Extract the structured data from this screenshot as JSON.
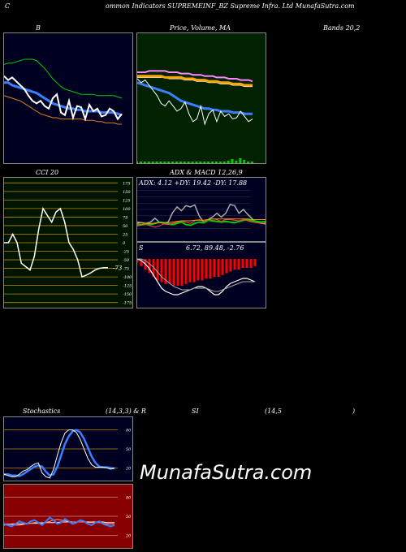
{
  "header": {
    "title": "Common Indicators SUPREMEINF_BZ Supreme Infra. Ltd MunafaSutra.com",
    "left": "C",
    "right": "ommon  Indicators SUPREMEINF_BZ Supreme  Infra. Ltd MunafaSutra.com"
  },
  "labels": {
    "bollinger": "B",
    "price_ma": "Price,  Volume,  MA",
    "bands": "Bands 20,2",
    "cci": "CCI 20",
    "adx_macd": "ADX  & MACD 12,26,9",
    "adx_values": "ADX: 4.12  +DY: 19.42  -DY: 17.88",
    "macd_s": "S",
    "macd_values": "6.72,  89.48,  -2.76",
    "stoch": "Stochastics",
    "stoch_params": "(14,3,3) & R",
    "rsi": "SI",
    "rsi_params": "(14,5",
    "rsi_close": ")",
    "cci_value": "-73"
  },
  "watermark": "MunafaSutra.com",
  "colors": {
    "bollinger_bg": "#000020",
    "price_bg": "#002200",
    "cci_bg": "#001500",
    "adx_bg": "#000020",
    "stoch_bg": "#000020",
    "rsi_bg": "#880000",
    "blue": "#3a7fff",
    "green": "#00cc00",
    "orange": "#e08020",
    "gridline": "#b8860b"
  },
  "chart_data": [
    {
      "type": "line",
      "name": "bollinger",
      "x": [
        0,
        1,
        2,
        3,
        4,
        5,
        6,
        7,
        8,
        9,
        10,
        11,
        12,
        13,
        14,
        15,
        16,
        17,
        18,
        19,
        20,
        21,
        22,
        23,
        24,
        25,
        26,
        27,
        28,
        29
      ],
      "series": [
        {
          "values": [
            62,
            62,
            60,
            59,
            58,
            57,
            56,
            55,
            54,
            52,
            50,
            48,
            46,
            45,
            44,
            43,
            42,
            42,
            41,
            41,
            40,
            40,
            40,
            40,
            39,
            39,
            39,
            39,
            38,
            37
          ]
        },
        {
          "values": [
            76,
            77,
            77,
            78,
            79,
            80,
            80,
            80,
            79,
            76,
            73,
            69,
            65,
            62,
            59,
            57,
            56,
            55,
            54,
            53,
            53,
            53,
            53,
            52,
            52,
            52,
            52,
            52,
            51,
            50
          ]
        },
        {
          "values": [
            52,
            51,
            50,
            49,
            48,
            46,
            44,
            42,
            40,
            38,
            37,
            36,
            35,
            35,
            34,
            34,
            34,
            34,
            34,
            34,
            33,
            33,
            33,
            32,
            32,
            31,
            31,
            31,
            30,
            30
          ]
        },
        {
          "values": [
            67,
            64,
            66,
            63,
            60,
            57,
            52,
            48,
            46,
            48,
            44,
            42,
            50,
            53,
            39,
            37,
            48,
            35,
            44,
            43,
            34,
            45,
            40,
            42,
            36,
            37,
            42,
            40,
            34,
            38
          ]
        }
      ]
    },
    {
      "type": "line",
      "name": "price_volume_ma",
      "x": [
        0,
        1,
        2,
        3,
        4,
        5,
        6,
        7,
        8,
        9,
        10,
        11,
        12,
        13,
        14,
        15,
        16,
        17,
        18,
        19,
        20,
        21,
        22,
        23,
        24,
        25,
        26,
        27,
        28,
        29
      ],
      "series": [
        {
          "values": [
            62,
            61,
            60,
            59,
            58,
            57,
            56,
            55,
            54,
            52,
            50,
            48,
            47,
            46,
            45,
            44,
            43,
            42,
            42,
            41,
            41,
            40,
            40,
            40,
            39,
            39,
            39,
            38,
            38,
            38
          ]
        },
        {
          "values": [
            70,
            70,
            70,
            71,
            71,
            71,
            71,
            71,
            70,
            70,
            70,
            69,
            69,
            69,
            68,
            68,
            68,
            67,
            67,
            67,
            66,
            66,
            66,
            65,
            65,
            65,
            64,
            64,
            64,
            63
          ]
        },
        {
          "values": [
            66,
            66,
            66,
            66,
            66,
            66,
            66,
            66,
            65,
            65,
            65,
            65,
            64,
            64,
            64,
            63,
            63,
            63,
            62,
            62,
            62,
            61,
            61,
            61,
            60,
            60,
            60,
            59,
            59,
            59
          ]
        },
        {
          "values": [
            67,
            67,
            67,
            67,
            67,
            67,
            67,
            66,
            66,
            66,
            66,
            66,
            65,
            65,
            65,
            64,
            64,
            64,
            63,
            63,
            63,
            62,
            62,
            62,
            61,
            61,
            61,
            60,
            60,
            60
          ]
        },
        {
          "values": [
            65,
            62,
            64,
            60,
            56,
            52,
            46,
            44,
            48,
            44,
            40,
            42,
            47,
            38,
            32,
            34,
            44,
            30,
            38,
            41,
            32,
            40,
            36,
            38,
            34,
            35,
            40,
            36,
            32,
            34
          ]
        }
      ],
      "volume": [
        2,
        2,
        2,
        2,
        2,
        2,
        2,
        2,
        2,
        2,
        2,
        2,
        2,
        2,
        2,
        2,
        2,
        2,
        2,
        2,
        2,
        2,
        2,
        3,
        5,
        3,
        6,
        4,
        2,
        2
      ]
    },
    {
      "type": "line",
      "name": "cci",
      "ticks": [
        175,
        150,
        125,
        100,
        75,
        50,
        25,
        0,
        -25,
        -50,
        -75,
        -100,
        -125,
        -150,
        -175
      ],
      "x": [
        0,
        1,
        2,
        3,
        4,
        5,
        6,
        7,
        8,
        9,
        10,
        11,
        12,
        13,
        14,
        15,
        16,
        17,
        18,
        19,
        20,
        21,
        22,
        23,
        24
      ],
      "values": [
        0,
        0,
        25,
        0,
        -60,
        -70,
        -80,
        -40,
        40,
        100,
        80,
        60,
        90,
        100,
        60,
        0,
        -20,
        -50,
        -100,
        -95,
        -88,
        -80,
        -75,
        -73,
        -73
      ]
    },
    {
      "type": "line",
      "name": "adx",
      "x": [
        0,
        1,
        2,
        3,
        4,
        5,
        6,
        7,
        8,
        9,
        10,
        11,
        12,
        13,
        14,
        15,
        16,
        17,
        18,
        19,
        20,
        21,
        22,
        23,
        24,
        25,
        26,
        27,
        28,
        29
      ],
      "series": [
        {
          "values": [
            30,
            29,
            28,
            30,
            36,
            30,
            28,
            30,
            45,
            54,
            48,
            56,
            54,
            57,
            40,
            30,
            34,
            38,
            44,
            38,
            44,
            58,
            56,
            44,
            50,
            42,
            35,
            30,
            28,
            27
          ]
        },
        {
          "values": [
            26,
            26,
            27,
            26,
            28,
            30,
            29,
            27,
            26,
            28,
            30,
            26,
            25,
            28,
            30,
            29,
            33,
            32,
            31,
            30,
            31,
            30,
            29,
            31,
            33,
            34,
            32,
            31,
            30,
            31
          ]
        },
        {
          "values": [
            24,
            25,
            26,
            24,
            22,
            24,
            27,
            26,
            28,
            30,
            32,
            30,
            28,
            32,
            34,
            31,
            34,
            35,
            34,
            31,
            34,
            34,
            33,
            32,
            34,
            32,
            30,
            29,
            28,
            29
          ]
        },
        {
          "values": [
            28,
            29,
            28,
            28,
            28,
            29,
            29,
            29,
            30,
            31,
            32,
            32,
            32,
            33,
            33,
            33,
            34,
            35,
            35,
            35,
            35,
            35,
            35,
            35,
            35,
            35,
            34,
            34,
            34,
            34
          ]
        }
      ]
    },
    {
      "type": "bar",
      "name": "macd",
      "x": [
        0,
        1,
        2,
        3,
        4,
        5,
        6,
        7,
        8,
        9,
        10,
        11,
        12,
        13,
        14,
        15,
        16,
        17,
        18,
        19,
        20,
        21,
        22,
        23,
        24,
        25,
        26,
        27,
        28,
        29
      ],
      "histogram": [
        -2,
        -4,
        -6,
        -8,
        -10,
        -12,
        -13,
        -14,
        -14,
        -15,
        -15,
        -15,
        -14,
        -13,
        -13,
        -12,
        -12,
        -11,
        -11,
        -10,
        -10,
        -9,
        -8,
        -7,
        -6,
        -6,
        -5,
        -5,
        -5,
        -4
      ],
      "series": [
        {
          "values": [
            0,
            -1,
            -3,
            -6,
            -10,
            -14,
            -18,
            -20,
            -21,
            -22,
            -22,
            -21,
            -20,
            -19,
            -18,
            -17,
            -17,
            -18,
            -20,
            -22,
            -22,
            -20,
            -17,
            -15,
            -14,
            -13,
            -12,
            -12,
            -13,
            -14
          ]
        },
        {
          "values": [
            0,
            0,
            -1,
            -3,
            -5,
            -8,
            -11,
            -13,
            -15,
            -17,
            -18,
            -19,
            -19,
            -19,
            -18,
            -18,
            -18,
            -18,
            -19,
            -20,
            -20,
            -19,
            -18,
            -17,
            -16,
            -15,
            -14,
            -14,
            -14,
            -14
          ]
        }
      ]
    },
    {
      "type": "line",
      "name": "stochastics",
      "ticks": [
        80,
        50,
        20
      ],
      "x": [
        0,
        1,
        2,
        3,
        4,
        5,
        6,
        7,
        8,
        9,
        10,
        11,
        12,
        13,
        14,
        15,
        16,
        17,
        18,
        19,
        20,
        21,
        22,
        23,
        24,
        25,
        26,
        27,
        28,
        29
      ],
      "series": [
        {
          "values": [
            10,
            8,
            6,
            6,
            10,
            15,
            17,
            22,
            26,
            28,
            12,
            6,
            4,
            18,
            40,
            60,
            75,
            80,
            80,
            76,
            65,
            50,
            35,
            25,
            21,
            21,
            21,
            20,
            18,
            20
          ]
        },
        {
          "values": [
            10,
            10,
            8,
            8,
            7,
            10,
            14,
            18,
            22,
            24,
            22,
            14,
            8,
            10,
            22,
            40,
            58,
            70,
            78,
            80,
            76,
            66,
            52,
            38,
            28,
            22,
            21,
            21,
            20,
            19
          ]
        }
      ]
    },
    {
      "type": "line",
      "name": "rsi",
      "ticks": [
        80,
        50,
        20
      ],
      "x": [
        0,
        1,
        2,
        3,
        4,
        5,
        6,
        7,
        8,
        9,
        10,
        11,
        12,
        13,
        14,
        15,
        16,
        17,
        18,
        19,
        20,
        21,
        22,
        23,
        24,
        25,
        26,
        27,
        28,
        29
      ],
      "series": [
        {
          "values": [
            36,
            37,
            38,
            38,
            38,
            38,
            39,
            39,
            39,
            39,
            39,
            40,
            40,
            40,
            40,
            41,
            41,
            41,
            41,
            41,
            41,
            41,
            41,
            41,
            41,
            41,
            41,
            40,
            40,
            40
          ]
        },
        {
          "values": [
            38,
            36,
            34,
            38,
            42,
            40,
            38,
            42,
            44,
            40,
            36,
            42,
            48,
            44,
            38,
            40,
            46,
            42,
            38,
            40,
            44,
            42,
            38,
            36,
            40,
            42,
            38,
            36,
            34,
            36
          ]
        },
        {
          "values": [
            38,
            38,
            37,
            36,
            36,
            37,
            38,
            39,
            40,
            40,
            40,
            40,
            42,
            44,
            45,
            44,
            43,
            42,
            41,
            41,
            41,
            41,
            40,
            40,
            40,
            40,
            39,
            38,
            38,
            38
          ]
        }
      ]
    }
  ]
}
